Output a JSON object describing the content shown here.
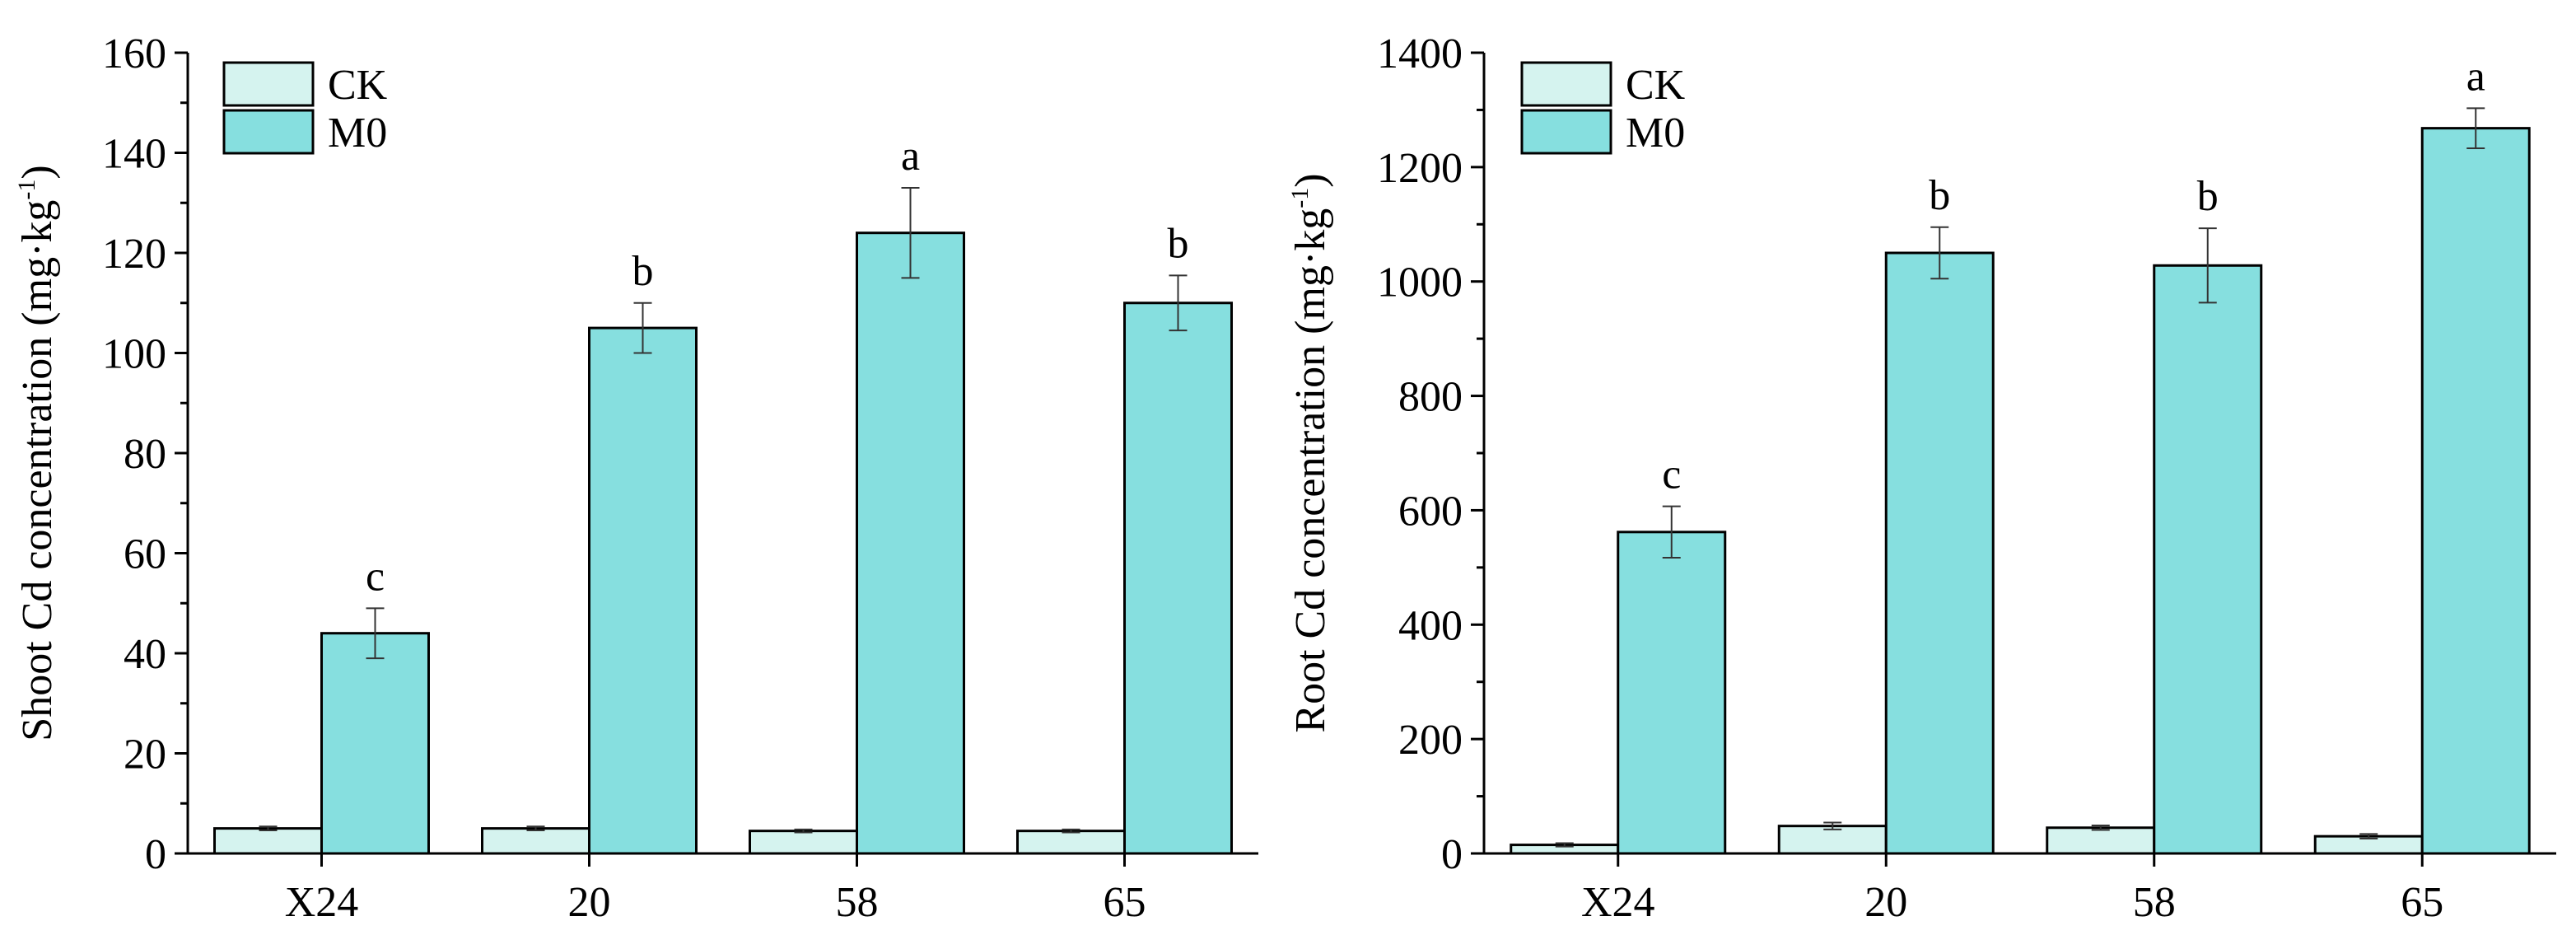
{
  "chart_data": [
    {
      "type": "bar",
      "ylabel": "Shoot Cd concentration (mg·kg",
      "ylabel_sup": "-1",
      "ylabel_close": ")",
      "xlabel": "",
      "categories": [
        "X24",
        "20",
        "58",
        "65"
      ],
      "ylim": [
        0,
        160
      ],
      "yticks": [
        0,
        20,
        40,
        60,
        80,
        100,
        120,
        140,
        160
      ],
      "series": [
        {
          "name": "CK",
          "values": [
            5,
            5,
            4.5,
            4.5
          ],
          "errors": [
            0.4,
            0.4,
            0.3,
            0.3
          ]
        },
        {
          "name": "M0",
          "values": [
            44,
            105,
            124,
            110
          ],
          "errors": [
            5,
            5,
            9,
            5.5
          ]
        }
      ],
      "significance": [
        "c",
        "b",
        "a",
        "b"
      ]
    },
    {
      "type": "bar",
      "ylabel": "Root Cd concentration (mg·kg",
      "ylabel_sup": "-1",
      "ylabel_close": ")",
      "xlabel": "",
      "categories": [
        "X24",
        "20",
        "58",
        "65"
      ],
      "ylim": [
        0,
        1400
      ],
      "yticks": [
        0,
        200,
        400,
        600,
        800,
        1000,
        1200,
        1400
      ],
      "series": [
        {
          "name": "CK",
          "values": [
            15,
            48,
            45,
            30
          ],
          "errors": [
            3,
            6,
            4,
            4
          ]
        },
        {
          "name": "M0",
          "values": [
            562,
            1050,
            1028,
            1268
          ],
          "errors": [
            45,
            45,
            65,
            35
          ]
        }
      ],
      "significance": [
        "c",
        "b",
        "b",
        "a"
      ]
    }
  ],
  "colors": {
    "CK": "#d5f3ef",
    "M0": "#86dfdf",
    "stroke": "#000000",
    "error": "#333333"
  }
}
